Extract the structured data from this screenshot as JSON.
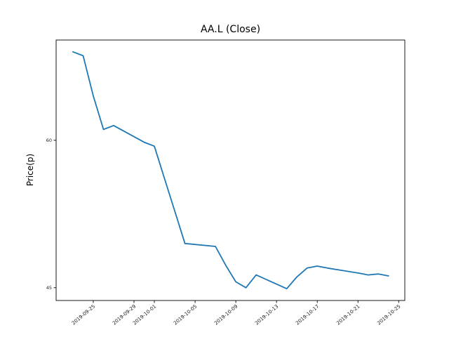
{
  "chart_data": {
    "type": "line",
    "title": "AA.L (Close)",
    "ylabel": "Price(p)",
    "xlabel": "",
    "series_name": "Close",
    "line_color": "#1f77b4",
    "grid": false,
    "legend_position": "none",
    "dates": [
      "2019-09-23",
      "2019-09-24",
      "2019-09-25",
      "2019-09-26",
      "2019-09-27",
      "2019-09-30",
      "2019-10-01",
      "2019-10-02",
      "2019-10-03",
      "2019-10-04",
      "2019-10-07",
      "2019-10-08",
      "2019-10-09",
      "2019-10-10",
      "2019-10-11",
      "2019-10-14",
      "2019-10-15",
      "2019-10-16",
      "2019-10-17",
      "2019-10-18",
      "2019-10-21",
      "2019-10-22",
      "2019-10-23",
      "2019-10-24"
    ],
    "values": [
      69.0,
      68.6,
      64.5,
      61.1,
      61.5,
      59.8,
      59.4,
      56.1,
      52.8,
      49.5,
      49.2,
      47.3,
      45.6,
      45.0,
      46.3,
      44.9,
      46.1,
      47.0,
      47.2,
      47.0,
      46.5,
      46.3,
      46.4,
      46.2
    ],
    "x_tick_labels": [
      "2019-09-25",
      "2019-09-29",
      "2019-10-01",
      "2019-10-05",
      "2019-10-09",
      "2019-10-13",
      "2019-10-17",
      "2019-10-21",
      "2019-10-25"
    ],
    "y_ticks": [
      45,
      60
    ],
    "ylim": [
      43.7,
      70.2
    ],
    "xlim_days_from_start": [
      -1.65,
      32.6
    ],
    "axis_color": "#000000",
    "tick_label_color": "#1a1a1a"
  }
}
